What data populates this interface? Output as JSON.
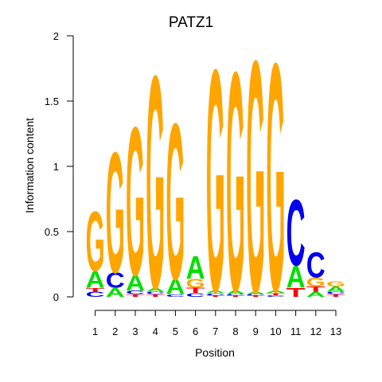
{
  "chart_data": {
    "type": "sequence-logo",
    "title": "PATZ1",
    "xlabel": "Position",
    "ylabel": "Information content",
    "ylim": [
      0,
      2
    ],
    "yticks": [
      "0",
      "0.5",
      "1",
      "1.5",
      "2"
    ],
    "positions": [
      "1",
      "2",
      "3",
      "4",
      "5",
      "6",
      "7",
      "8",
      "9",
      "10",
      "11",
      "12",
      "13"
    ],
    "colors": {
      "A": "#00e000",
      "C": "#0000ee",
      "G": "#ffa500",
      "T": "#ff0000"
    },
    "stacks": [
      [
        {
          "base": "C",
          "bits": 0.04
        },
        {
          "base": "T",
          "bits": 0.03
        },
        {
          "base": "A",
          "bits": 0.13
        },
        {
          "base": "G",
          "bits": 0.47
        }
      ],
      [
        {
          "base": "A",
          "bits": 0.07
        },
        {
          "base": "C",
          "bits": 0.12
        },
        {
          "base": "G",
          "bits": 0.95
        }
      ],
      [
        {
          "base": "T",
          "bits": 0.02
        },
        {
          "base": "C",
          "bits": 0.03
        },
        {
          "base": "A",
          "bits": 0.12
        },
        {
          "base": "G",
          "bits": 1.17
        }
      ],
      [
        {
          "base": "T",
          "bits": 0.02
        },
        {
          "base": "C",
          "bits": 0.02
        },
        {
          "base": "A",
          "bits": 0.03
        },
        {
          "base": "G",
          "bits": 1.68
        }
      ],
      [
        {
          "base": "C",
          "bits": 0.02
        },
        {
          "base": "A",
          "bits": 0.12
        },
        {
          "base": "G",
          "bits": 1.23
        }
      ],
      [
        {
          "base": "C",
          "bits": 0.03
        },
        {
          "base": "T",
          "bits": 0.04
        },
        {
          "base": "G",
          "bits": 0.07
        },
        {
          "base": "A",
          "bits": 0.18
        }
      ],
      [
        {
          "base": "T",
          "bits": 0.01
        },
        {
          "base": "C",
          "bits": 0.02
        },
        {
          "base": "A",
          "bits": 0.02
        },
        {
          "base": "G",
          "bits": 1.75
        }
      ],
      [
        {
          "base": "T",
          "bits": 0.01
        },
        {
          "base": "C",
          "bits": 0.01
        },
        {
          "base": "A",
          "bits": 0.03
        },
        {
          "base": "G",
          "bits": 1.73
        }
      ],
      [
        {
          "base": "T",
          "bits": 0.01
        },
        {
          "base": "C",
          "bits": 0.01
        },
        {
          "base": "A",
          "bits": 0.02
        },
        {
          "base": "G",
          "bits": 1.83
        }
      ],
      [
        {
          "base": "C",
          "bits": 0.01
        },
        {
          "base": "T",
          "bits": 0.02
        },
        {
          "base": "A",
          "bits": 0.02
        },
        {
          "base": "G",
          "bits": 1.8
        }
      ],
      [
        {
          "base": "T",
          "bits": 0.07
        },
        {
          "base": "A",
          "bits": 0.17
        },
        {
          "base": "C",
          "bits": 0.52
        }
      ],
      [
        {
          "base": "A",
          "bits": 0.04
        },
        {
          "base": "T",
          "bits": 0.04
        },
        {
          "base": "G",
          "bits": 0.07
        },
        {
          "base": "C",
          "bits": 0.2
        }
      ],
      [
        {
          "base": "T",
          "bits": 0.02
        },
        {
          "base": "C",
          "bits": 0.02
        },
        {
          "base": "A",
          "bits": 0.04
        },
        {
          "base": "G",
          "bits": 0.04
        }
      ]
    ]
  }
}
